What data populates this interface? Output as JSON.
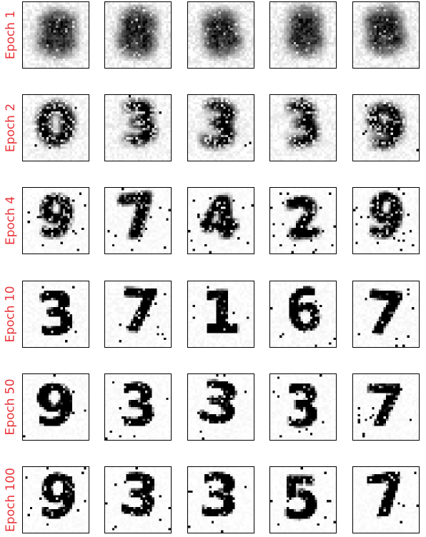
{
  "figure": {
    "rows": [
      {
        "label": "Epoch 1",
        "stage": 0,
        "digits": [
          "8",
          "8",
          "8",
          "8",
          "8"
        ]
      },
      {
        "label": "Epoch 2",
        "stage": 1,
        "digits": [
          "0",
          "3",
          "3",
          "3",
          "9"
        ]
      },
      {
        "label": "Epoch 4",
        "stage": 2,
        "digits": [
          "9",
          "7",
          "4",
          "2",
          "9"
        ]
      },
      {
        "label": "Epoch 10",
        "stage": 3,
        "digits": [
          "3",
          "7",
          "1",
          "6",
          "7"
        ]
      },
      {
        "label": "Epoch 50",
        "stage": 4,
        "digits": [
          "9",
          "3",
          "3",
          "3",
          "7"
        ]
      },
      {
        "label": "Epoch 100",
        "stage": 5,
        "digits": [
          "9",
          "3",
          "3",
          "5",
          "7"
        ]
      }
    ],
    "columns": 5,
    "label_color": "#e8343a"
  }
}
